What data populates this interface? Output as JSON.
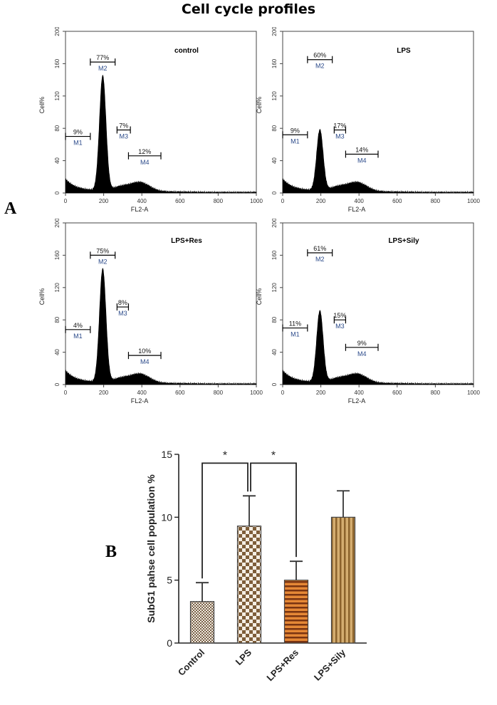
{
  "title": "Cell cycle profiles",
  "panel_a_label": "A",
  "panel_b_label": "B",
  "histogram_axes": {
    "ylabel": "Cell%",
    "xlabel": "FL2-A",
    "xlim": [
      0,
      1000
    ],
    "ylim": [
      0,
      200
    ],
    "xticks": [
      0,
      200,
      400,
      600,
      800,
      1000
    ],
    "yticks": [
      0,
      40,
      80,
      120,
      160,
      200
    ]
  },
  "chart_data": [
    {
      "type": "area",
      "title": "control",
      "peak_height": 142,
      "markers": [
        {
          "name": "M1",
          "start": 0,
          "end": 130,
          "level": 70,
          "label": "9%"
        },
        {
          "name": "M2",
          "start": 130,
          "end": 260,
          "level": 162,
          "label": "77%"
        },
        {
          "name": "M3",
          "start": 270,
          "end": 340,
          "level": 78,
          "label": "7%"
        },
        {
          "name": "M4",
          "start": 330,
          "end": 500,
          "level": 46,
          "label": "12%"
        }
      ]
    },
    {
      "type": "area",
      "title": "LPS",
      "peak_height": 75,
      "markers": [
        {
          "name": "M1",
          "start": 0,
          "end": 130,
          "level": 72,
          "label": "9%"
        },
        {
          "name": "M2",
          "start": 130,
          "end": 260,
          "level": 165,
          "label": "60%"
        },
        {
          "name": "M3",
          "start": 270,
          "end": 330,
          "level": 78,
          "label": "17%"
        },
        {
          "name": "M4",
          "start": 330,
          "end": 500,
          "level": 48,
          "label": "14%"
        }
      ]
    },
    {
      "type": "area",
      "title": "LPS+Res",
      "peak_height": 140,
      "markers": [
        {
          "name": "M1",
          "start": 0,
          "end": 130,
          "level": 68,
          "label": "4%"
        },
        {
          "name": "M2",
          "start": 130,
          "end": 260,
          "level": 160,
          "label": "75%"
        },
        {
          "name": "M3",
          "start": 270,
          "end": 330,
          "level": 96,
          "label": "8%"
        },
        {
          "name": "M4",
          "start": 330,
          "end": 500,
          "level": 36,
          "label": "10%"
        }
      ]
    },
    {
      "type": "area",
      "title": "LPS+Sily",
      "peak_height": 88,
      "markers": [
        {
          "name": "M1",
          "start": 0,
          "end": 130,
          "level": 70,
          "label": "11%"
        },
        {
          "name": "M2",
          "start": 130,
          "end": 260,
          "level": 163,
          "label": "61%"
        },
        {
          "name": "M3",
          "start": 270,
          "end": 330,
          "level": 80,
          "label": "15%"
        },
        {
          "name": "M4",
          "start": 330,
          "end": 500,
          "level": 46,
          "label": "9%"
        }
      ]
    },
    {
      "type": "bar",
      "ylabel": "SubG1 pahse cell population %",
      "categories": [
        "Control",
        "LPS",
        "LPS+Res",
        "LPS+Sily"
      ],
      "values": [
        3.3,
        9.3,
        5.0,
        10.0
      ],
      "errors": [
        1.5,
        2.4,
        1.5,
        2.1
      ],
      "ylim": [
        0,
        15
      ],
      "yticks": [
        "0",
        "5",
        "10",
        "15"
      ],
      "significance": [
        {
          "from": 0,
          "to": 1,
          "label": "*"
        },
        {
          "from": 1,
          "to": 2,
          "label": "*"
        }
      ],
      "colors": {
        "Control": "#c7b8a2",
        "LPS": "#8a6a43",
        "LPS+Res": "#d9752e",
        "LPS+Sily": "#c19a5f"
      }
    }
  ]
}
